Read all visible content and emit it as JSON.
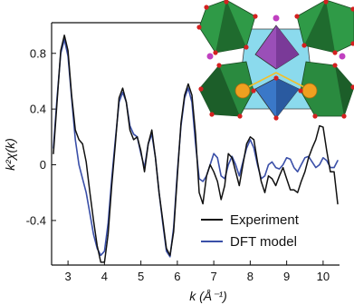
{
  "chart_data": {
    "type": "line",
    "xlabel": "k (Å⁻¹)",
    "ylabel": "k²χ(k)",
    "xlim": [
      2.55,
      10.45
    ],
    "ylim": [
      -0.72,
      1.02
    ],
    "x_ticks": [
      3,
      4,
      5,
      6,
      7,
      8,
      9,
      10
    ],
    "y_ticks": [
      0.8,
      0.4,
      0,
      -0.4
    ],
    "y_tick_labels": [
      "0.8",
      "0.4",
      "0",
      "-0.4"
    ],
    "grid": false,
    "legend_position": "bottom-right",
    "series": [
      {
        "name": "Experiment",
        "color": "#111111",
        "x": [
          2.6,
          2.7,
          2.8,
          2.9,
          3.0,
          3.1,
          3.2,
          3.3,
          3.4,
          3.5,
          3.6,
          3.7,
          3.8,
          3.9,
          4.0,
          4.1,
          4.2,
          4.3,
          4.4,
          4.5,
          4.6,
          4.7,
          4.8,
          4.9,
          5.0,
          5.1,
          5.2,
          5.3,
          5.4,
          5.5,
          5.6,
          5.7,
          5.8,
          5.9,
          6.0,
          6.1,
          6.2,
          6.3,
          6.4,
          6.5,
          6.6,
          6.7,
          6.8,
          6.9,
          7.0,
          7.1,
          7.2,
          7.3,
          7.4,
          7.5,
          7.6,
          7.7,
          7.8,
          7.9,
          8.0,
          8.1,
          8.2,
          8.3,
          8.4,
          8.5,
          8.6,
          8.7,
          8.8,
          8.9,
          9.0,
          9.1,
          9.2,
          9.3,
          9.4,
          9.5,
          9.6,
          9.7,
          9.8,
          9.9,
          10.0,
          10.1,
          10.2,
          10.3,
          10.4
        ],
        "values": [
          0.08,
          0.45,
          0.82,
          0.93,
          0.82,
          0.5,
          0.25,
          0.18,
          0.15,
          0.02,
          -0.2,
          -0.4,
          -0.58,
          -0.7,
          -0.7,
          -0.5,
          -0.15,
          0.15,
          0.48,
          0.55,
          0.45,
          0.25,
          0.18,
          0.2,
          0.1,
          -0.05,
          0.15,
          0.25,
          0.05,
          -0.2,
          -0.4,
          -0.6,
          -0.65,
          -0.48,
          -0.08,
          0.3,
          0.5,
          0.58,
          0.5,
          0.22,
          -0.2,
          -0.28,
          -0.08,
          0.0,
          -0.05,
          -0.12,
          -0.25,
          -0.15,
          0.08,
          0.05,
          -0.05,
          -0.15,
          0.0,
          0.15,
          0.2,
          0.18,
          0.02,
          -0.12,
          -0.2,
          -0.08,
          -0.1,
          -0.15,
          -0.08,
          -0.02,
          -0.1,
          -0.18,
          -0.18,
          -0.2,
          -0.12,
          -0.05,
          0.05,
          0.12,
          0.18,
          0.28,
          0.27,
          0.1,
          -0.05,
          -0.05,
          -0.28
        ]
      },
      {
        "name": "DFT model",
        "color": "#3a4fa8",
        "x": [
          2.6,
          2.7,
          2.8,
          2.9,
          3.0,
          3.1,
          3.2,
          3.3,
          3.4,
          3.5,
          3.6,
          3.7,
          3.8,
          3.9,
          4.0,
          4.1,
          4.2,
          4.3,
          4.4,
          4.5,
          4.6,
          4.7,
          4.8,
          4.9,
          5.0,
          5.1,
          5.2,
          5.3,
          5.4,
          5.5,
          5.6,
          5.7,
          5.8,
          5.9,
          6.0,
          6.1,
          6.2,
          6.3,
          6.4,
          6.5,
          6.6,
          6.7,
          6.8,
          6.9,
          7.0,
          7.1,
          7.2,
          7.3,
          7.4,
          7.5,
          7.6,
          7.7,
          7.8,
          7.9,
          8.0,
          8.1,
          8.2,
          8.3,
          8.4,
          8.5,
          8.6,
          8.7,
          8.8,
          8.9,
          9.0,
          9.1,
          9.2,
          9.3,
          9.4,
          9.5,
          9.6,
          9.7,
          9.8,
          9.9,
          10.0,
          10.1,
          10.2,
          10.3,
          10.4
        ],
        "values": [
          0.12,
          0.48,
          0.8,
          0.9,
          0.78,
          0.48,
          0.18,
          0.0,
          -0.1,
          -0.2,
          -0.35,
          -0.5,
          -0.6,
          -0.65,
          -0.62,
          -0.42,
          -0.1,
          0.18,
          0.45,
          0.52,
          0.45,
          0.28,
          0.22,
          0.2,
          0.08,
          -0.02,
          0.15,
          0.22,
          0.05,
          -0.2,
          -0.42,
          -0.62,
          -0.66,
          -0.45,
          -0.05,
          0.28,
          0.48,
          0.55,
          0.45,
          0.15,
          -0.1,
          -0.12,
          -0.08,
          0.0,
          0.08,
          0.05,
          -0.08,
          -0.1,
          0.0,
          0.06,
          0.0,
          -0.08,
          0.02,
          0.12,
          0.18,
          0.12,
          0.0,
          -0.1,
          -0.08,
          0.0,
          0.02,
          -0.02,
          -0.03,
          0.0,
          0.05,
          0.04,
          -0.02,
          -0.05,
          0.0,
          0.05,
          0.06,
          0.02,
          -0.02,
          0.0,
          0.05,
          0.03,
          -0.02,
          -0.02,
          0.03
        ]
      }
    ]
  },
  "inset": {
    "description_icon": "crystal-structure-inset",
    "colors": {
      "octahedron_green": "#2e8b3e",
      "octahedron_dark": "#1f6b2e",
      "central_cyan": "#6fd0e8",
      "pyramid_purple": "#9a4fb8",
      "pyramid_blue": "#3a78c8",
      "atom_orange": "#f0a020",
      "atom_red": "#d42020",
      "atom_pink": "#c040c0"
    }
  }
}
